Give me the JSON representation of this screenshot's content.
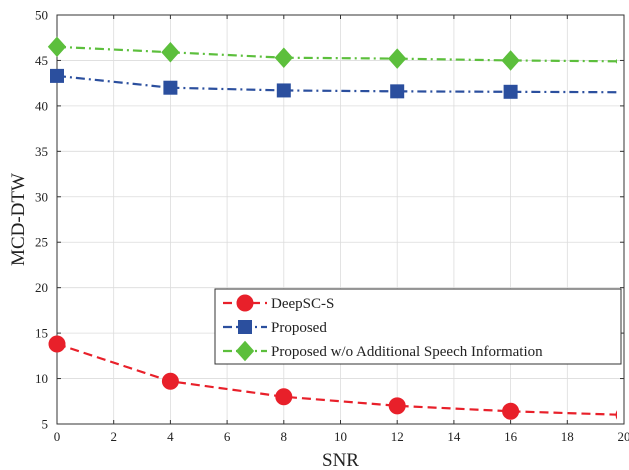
{
  "chart_data": {
    "type": "line",
    "title": "",
    "xlabel": "SNR",
    "ylabel": "MCD-DTW",
    "xlim": [
      0,
      20
    ],
    "ylim": [
      5,
      50
    ],
    "xticks": [
      0,
      2,
      4,
      6,
      8,
      10,
      12,
      14,
      16,
      18,
      20
    ],
    "yticks": [
      5,
      10,
      15,
      20,
      25,
      30,
      35,
      40,
      45,
      50
    ],
    "xtick_labels": [
      "0",
      "2",
      "4",
      "6",
      "8",
      "10",
      "12",
      "14",
      "16",
      "18",
      "20"
    ],
    "ytick_labels": [
      "5",
      "10",
      "15",
      "20",
      "25",
      "30",
      "35",
      "40",
      "45",
      "50"
    ],
    "grid": true,
    "legend_position": "bottom-right",
    "x": [
      0,
      4,
      8,
      12,
      16,
      20
    ],
    "series": [
      {
        "name": "DeepSC-S",
        "values": [
          13.8,
          9.7,
          8.0,
          7.0,
          6.4,
          6.0
        ],
        "color": "#e8202a",
        "marker": "circle",
        "line_style": "dashed"
      },
      {
        "name": "Proposed",
        "values": [
          43.3,
          42.0,
          41.7,
          41.6,
          41.55,
          41.5
        ],
        "color": "#2b4f9e",
        "marker": "square",
        "line_style": "dashdot"
      },
      {
        "name": "Proposed w/o Additional Speech Information",
        "values": [
          46.5,
          45.9,
          45.3,
          45.2,
          45.0,
          44.9
        ],
        "color": "#5cbf3c",
        "marker": "diamond",
        "line_style": "dashdot"
      }
    ]
  }
}
